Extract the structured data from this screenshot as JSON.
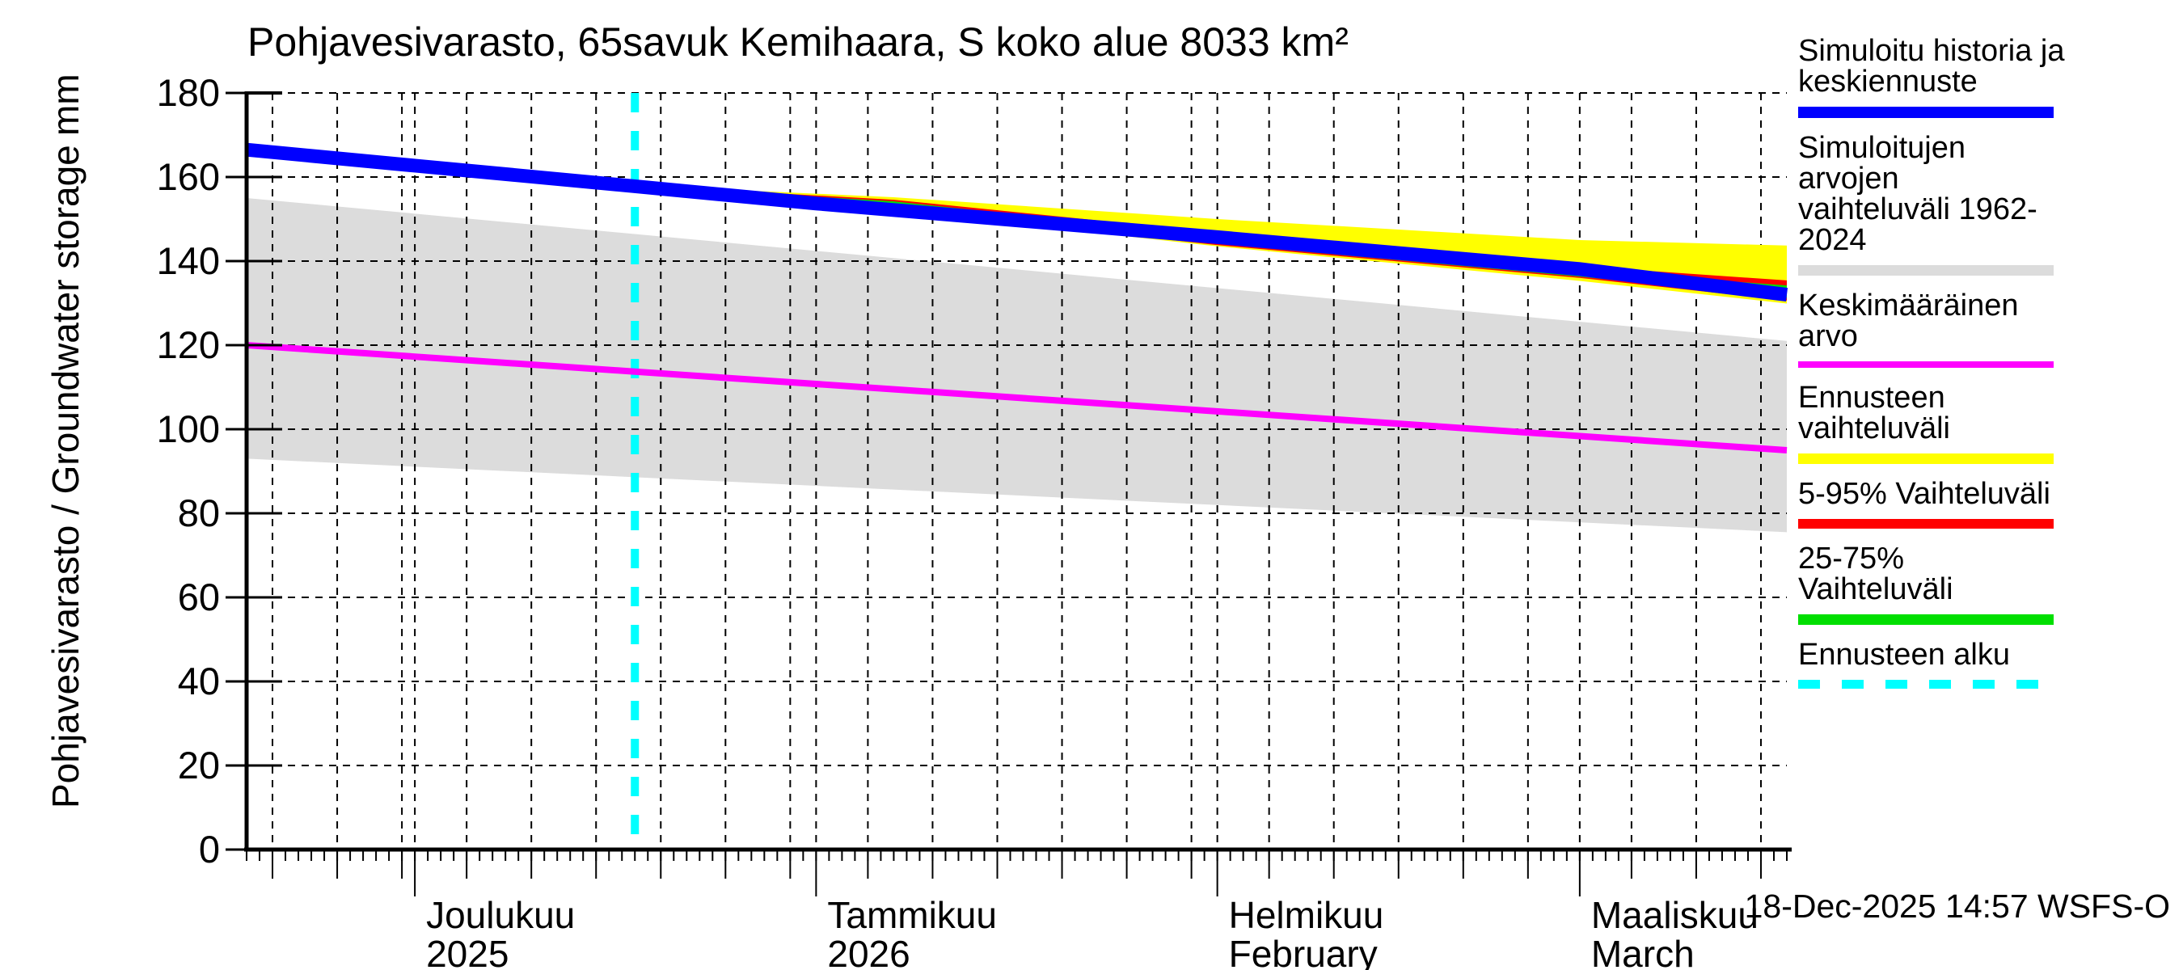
{
  "title": "Pohjavesivarasto, 65savuk Kemihaara, S koko alue 8033 km²",
  "timestamp": "18-Dec-2025 14:57 WSFS-O",
  "colors": {
    "history_forecast": "#0000ff",
    "sim_range": "#dcdcdc",
    "average": "#ff00ff",
    "forecast_range": "#ffff00",
    "range_5_95": "#ff0000",
    "range_25_75": "#00df00",
    "forecast_start": "#00ffff",
    "axis": "#000000",
    "background": "#ffffff"
  },
  "legend": {
    "items": [
      {
        "label": "Simuloitu historia ja\nkeskiennuste",
        "color": "#0000ff",
        "style": "solid"
      },
      {
        "label": "Simuloitujen arvojen\nvaihteluväli 1962-2024",
        "color": "#dcdcdc",
        "style": "solid"
      },
      {
        "label": "Keskimääräinen arvo",
        "color": "#ff00ff",
        "style": "solid"
      },
      {
        "label": "Ennusteen vaihteluväli",
        "color": "#ffff00",
        "style": "solid"
      },
      {
        "label": "5-95% Vaihteluväli",
        "color": "#ff0000",
        "style": "solid"
      },
      {
        "label": "25-75% Vaihteluväli",
        "color": "#00df00",
        "style": "solid"
      },
      {
        "label": "Ennusteen alku",
        "color": "#00ffff",
        "style": "dashed"
      }
    ]
  },
  "chart_data": {
    "type": "line",
    "title": "Pohjavesivarasto, 65savuk Kemihaara, S koko alue 8033 km²",
    "ylabel": "Pohjavesivarasto / Groundwater storage",
    "y_unit": "mm",
    "ylim": [
      0,
      180
    ],
    "y_ticks": [
      0,
      20,
      40,
      60,
      80,
      100,
      120,
      140,
      160,
      180
    ],
    "x_start_date": "2025-11-18",
    "x_end_date": "2026-03-17",
    "x_total_days": 119,
    "grid": "dashed",
    "legend_position": "right",
    "x_gridline_days": [
      2,
      7,
      12,
      13,
      17,
      22,
      27,
      32,
      37,
      42,
      44,
      48,
      53,
      58,
      63,
      68,
      73,
      75,
      79,
      84,
      89,
      94,
      99,
      103,
      107,
      112,
      117
    ],
    "month_ticks": [
      {
        "day": 13,
        "label": "Joulukuu",
        "sublabel": "2025"
      },
      {
        "day": 44,
        "label": "Tammikuu",
        "sublabel": "2026"
      },
      {
        "day": 75,
        "label": "Helmikuu",
        "sublabel": "February"
      },
      {
        "day": 103,
        "label": "Maaliskuu",
        "sublabel": "March"
      }
    ],
    "forecast_start": {
      "name": "Ennusteen alku",
      "day": 30,
      "date": "2025-12-18",
      "color": "#00ffff"
    },
    "bands": [
      {
        "name": "Simuloitujen arvojen vaihteluväli 1962-2024",
        "color": "#dcdcdc",
        "days": [
          0,
          119
        ],
        "top": [
          155,
          121
        ],
        "bottom": [
          93,
          75.5
        ]
      },
      {
        "name": "Ennusteen vaihteluväli",
        "color": "#ffff00",
        "days": [
          30,
          50,
          75,
          103,
          119
        ],
        "top": [
          158,
          155.2,
          150,
          145,
          143.7
        ],
        "bottom": [
          157.3,
          152,
          143.5,
          135.3,
          129.9
        ]
      },
      {
        "name": "5-95% Vaihteluväli",
        "color": "#ff0000",
        "days": [
          30,
          50,
          75,
          103,
          119
        ],
        "top": [
          158,
          154.6,
          146.8,
          138.8,
          135.4
        ],
        "bottom": [
          157.4,
          152.4,
          143.8,
          136,
          130.6
        ]
      },
      {
        "name": "25-75% Vaihteluväli",
        "color": "#00df00",
        "days": [
          30,
          50,
          75,
          103,
          119
        ],
        "top": [
          157.9,
          154.2,
          146,
          137.8,
          134.2
        ],
        "bottom": [
          157.5,
          152.7,
          144.1,
          136.3,
          131.3
        ]
      }
    ],
    "series": [
      {
        "name": "Simuloitu historia ja keskiennuste",
        "color": "#0000ff",
        "width": 17,
        "days": [
          0,
          13,
          30,
          44,
          75,
          103,
          119
        ],
        "values": [
          166.5,
          162.7,
          157.8,
          153.7,
          145.7,
          138.1,
          132
        ]
      },
      {
        "name": "Keskimääräinen arvo",
        "color": "#ff00ff",
        "width": 8,
        "days": [
          0,
          30,
          60,
          90,
          119
        ],
        "values": [
          120,
          113.7,
          107.4,
          101.1,
          95
        ]
      }
    ]
  }
}
